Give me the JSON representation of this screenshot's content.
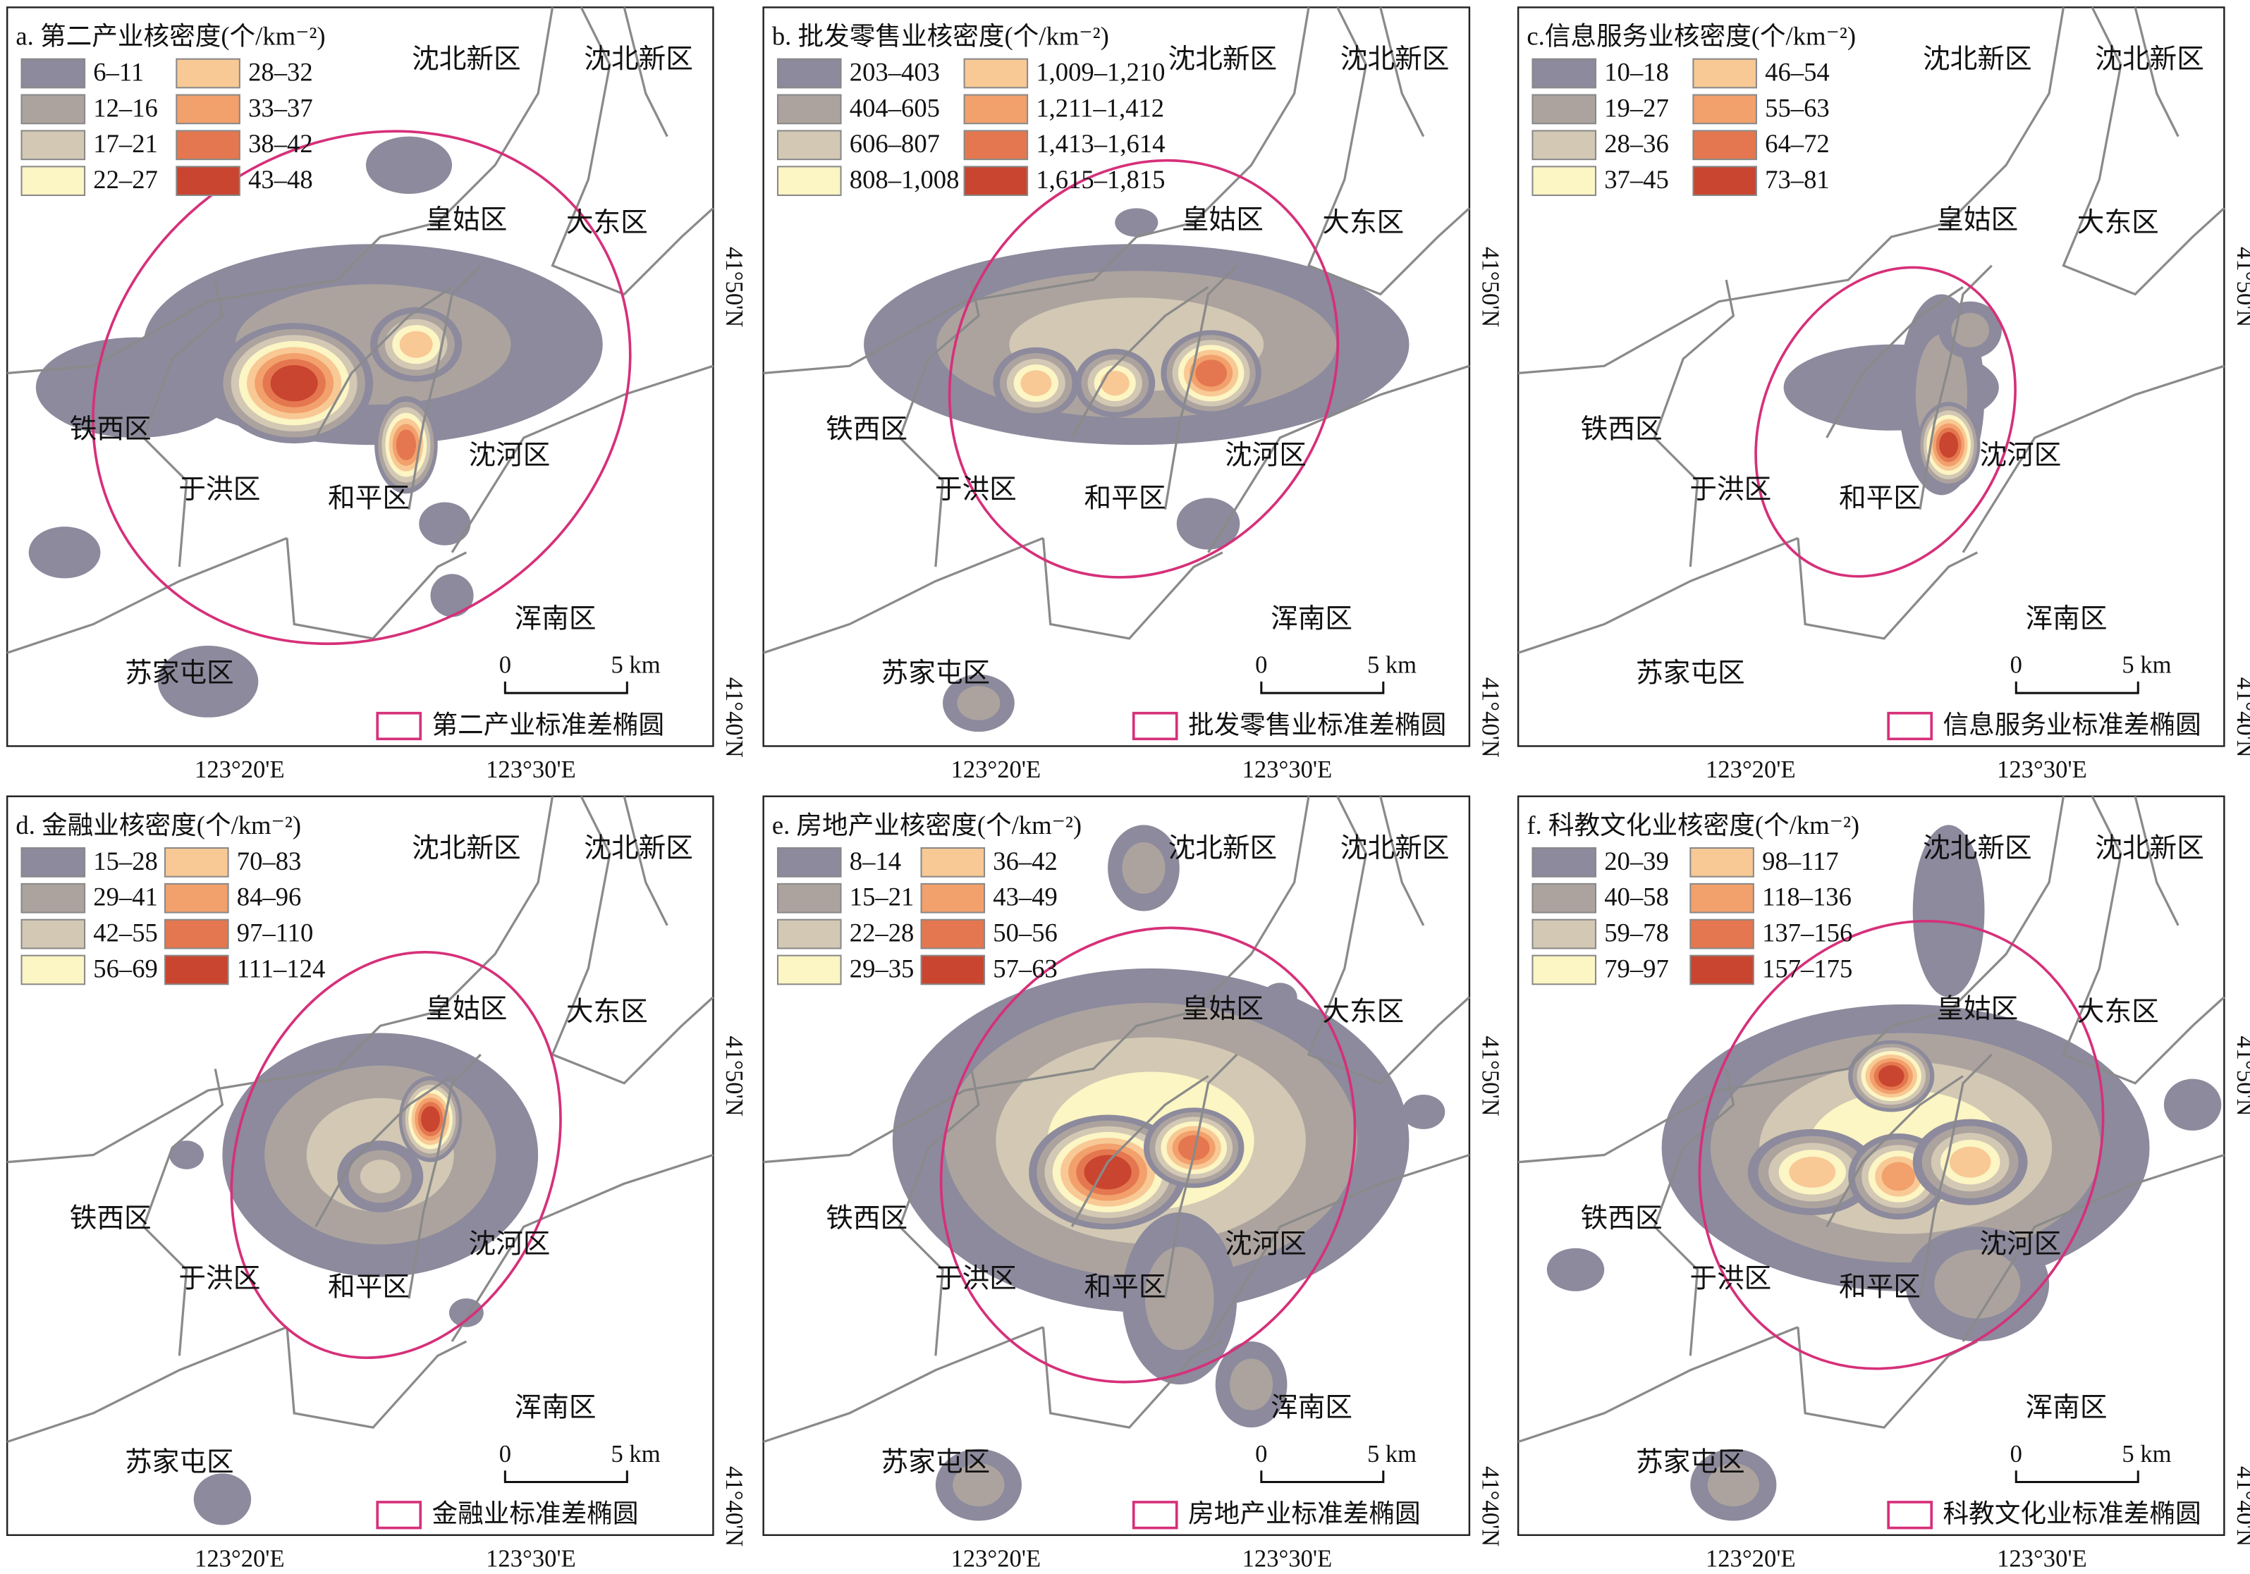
{
  "palette": [
    "#8c8a9c",
    "#aca39f",
    "#d2c8b4",
    "#fcf5c4",
    "#f8c995",
    "#f2a06c",
    "#e4774f",
    "#c9452f"
  ],
  "districts": [
    "沈北新区",
    "沈北新区",
    "皇姑区",
    "大东区",
    "铁西区",
    "于洪区",
    "和平区",
    "沈河区",
    "浑南区",
    "苏家屯区"
  ],
  "scale": [
    "0",
    "5 km"
  ],
  "x_ticks": [
    "123°20'E",
    "123°30'E"
  ],
  "y_ticks": [
    "41°50'N",
    "41°40'N"
  ],
  "panels": [
    {
      "title": "a. 第二产业核密度(个/km⁻²)",
      "classes": [
        "6–11",
        "12–16",
        "17–21",
        "22–27",
        "28–32",
        "33–37",
        "38–42",
        "43–48"
      ],
      "ellipse_label": "第二产业标准差椭圆"
    },
    {
      "title": "b. 批发零售业核密度(个/km⁻²)",
      "classes": [
        "203–403",
        "404–605",
        "606–807",
        "808–1,008",
        "1,009–1,210",
        "1,211–1,412",
        "1,413–1,614",
        "1,615–1,815"
      ],
      "ellipse_label": "批发零售业标准差椭圆"
    },
    {
      "title": "c.信息服务业核密度(个/km⁻²)",
      "classes": [
        "10–18",
        "19–27",
        "28–36",
        "37–45",
        "46–54",
        "55–63",
        "64–72",
        "73–81"
      ],
      "ellipse_label": "信息服务业标准差椭圆"
    },
    {
      "title": "d. 金融业核密度(个/km⁻²)",
      "classes": [
        "15–28",
        "29–41",
        "42–55",
        "56–69",
        "70–83",
        "84–96",
        "97–110",
        "111–124"
      ],
      "ellipse_label": "金融业标准差椭圆"
    },
    {
      "title": "e. 房地产业核密度(个/km⁻²)",
      "classes": [
        "8–14",
        "15–21",
        "22–28",
        "29–35",
        "36–42",
        "43–49",
        "50–56",
        "57–63"
      ],
      "ellipse_label": "房地产业标准差椭圆"
    },
    {
      "title": "f. 科教文化业核密度(个/km⁻²)",
      "classes": [
        "20–39",
        "40–58",
        "59–78",
        "79–97",
        "98–117",
        "118–136",
        "137–156",
        "157–175"
      ],
      "ellipse_label": "科教文化业标准差椭圆"
    }
  ]
}
